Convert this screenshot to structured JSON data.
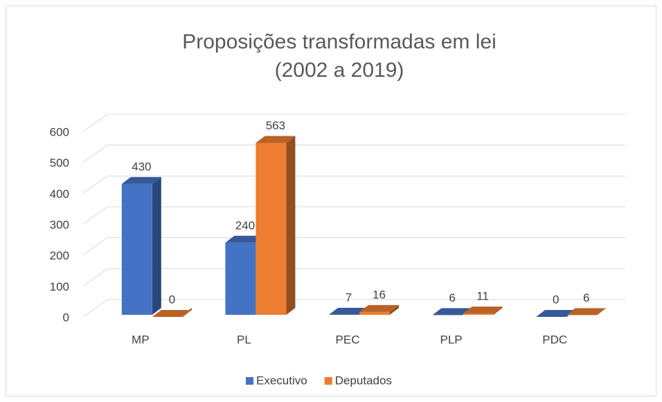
{
  "chart_data": {
    "type": "bar3d",
    "title": "Proposições transformadas em lei",
    "subtitle": "(2002 a 2019)",
    "categories": [
      "MP",
      "PL",
      "PEC",
      "PLP",
      "PDC"
    ],
    "series": [
      {
        "name": "Executivo",
        "color": "#4472c4",
        "values": [
          430,
          240,
          7,
          6,
          0
        ]
      },
      {
        "name": "Deputados",
        "color": "#ed7d31",
        "values": [
          0,
          563,
          16,
          11,
          6
        ]
      }
    ],
    "ylim": [
      0,
      600
    ],
    "yticks": [
      0,
      100,
      200,
      300,
      400,
      500,
      600
    ],
    "grid": true,
    "legend": "bottom"
  }
}
